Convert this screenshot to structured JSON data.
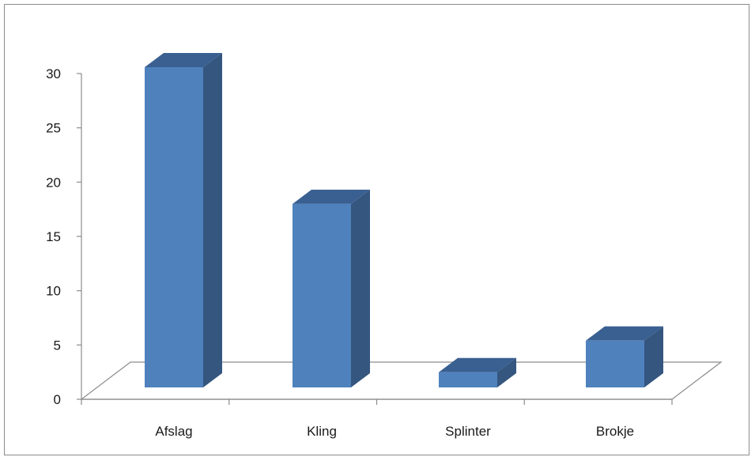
{
  "chart_data": {
    "type": "bar",
    "style": "3d-column",
    "title": "",
    "xlabel": "",
    "ylabel": "",
    "categories": [
      "Afslag",
      "Kling",
      "Splinter",
      "Brokje"
    ],
    "values": [
      30,
      17,
      1,
      4
    ],
    "ylim": [
      0,
      30
    ],
    "yticks": [
      0,
      5,
      10,
      15,
      20,
      25,
      30
    ],
    "grid": false,
    "legend": "none",
    "colors": {
      "bar_front": "#4f81bd",
      "bar_side": "#34567f",
      "bar_top": "#3a6091",
      "floor_line": "#8c8c8c",
      "axis_line": "#8c8c8c"
    }
  }
}
